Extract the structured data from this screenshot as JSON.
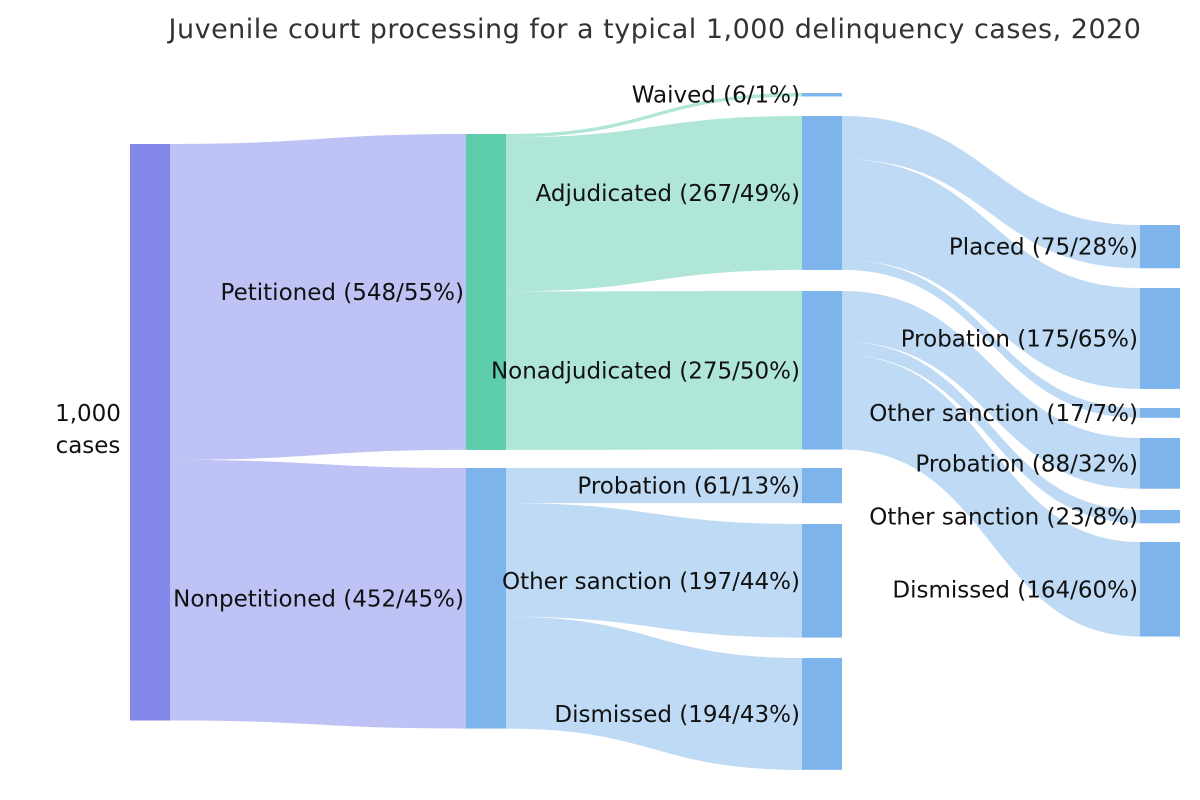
{
  "chart_data": {
    "type": "sankey",
    "title": "Juvenile court processing for a typical 1,000 delinquency cases, 2020",
    "colors": {
      "root": "#8387e8",
      "root_link": "#bec2f4",
      "adjudication": "#5ecdab",
      "adjudication_link": "#b0e6d8",
      "outcome": "#7db4ec",
      "outcome_link": "#bedaf4"
    },
    "nodes": [
      {
        "id": "total",
        "label": "1,000 cases",
        "lines": [
          "1,000",
          "cases"
        ],
        "value": 1000
      },
      {
        "id": "petitioned",
        "label": "Petitioned (548/55%)",
        "value": 548
      },
      {
        "id": "nonpetitioned",
        "label": "Nonpetitioned (452/45%)",
        "value": 452
      },
      {
        "id": "waived",
        "label": "Waived (6/1%)",
        "value": 6
      },
      {
        "id": "adjudicated",
        "label": "Adjudicated (267/49%)",
        "value": 267
      },
      {
        "id": "nonadjudicated",
        "label": "Nonadjudicated (275/50%)",
        "value": 275
      },
      {
        "id": "np_probation",
        "label": "Probation (61/13%)",
        "value": 61
      },
      {
        "id": "np_other",
        "label": "Other sanction (197/44%)",
        "value": 197
      },
      {
        "id": "np_dismissed",
        "label": "Dismissed (194/43%)",
        "value": 194
      },
      {
        "id": "adj_placed",
        "label": "Placed (75/28%)",
        "value": 75
      },
      {
        "id": "adj_probation",
        "label": "Probation (175/65%)",
        "value": 175
      },
      {
        "id": "adj_other",
        "label": "Other sanction (17/7%)",
        "value": 17
      },
      {
        "id": "nonadj_probation",
        "label": "Probation (88/32%)",
        "value": 88
      },
      {
        "id": "nonadj_other",
        "label": "Other sanction (23/8%)",
        "value": 23
      },
      {
        "id": "nonadj_dismissed",
        "label": "Dismissed (164/60%)",
        "value": 164
      }
    ],
    "links": [
      {
        "source": "total",
        "target": "petitioned",
        "value": 548
      },
      {
        "source": "total",
        "target": "nonpetitioned",
        "value": 452
      },
      {
        "source": "petitioned",
        "target": "waived",
        "value": 6
      },
      {
        "source": "petitioned",
        "target": "adjudicated",
        "value": 267
      },
      {
        "source": "petitioned",
        "target": "nonadjudicated",
        "value": 275
      },
      {
        "source": "nonpetitioned",
        "target": "np_probation",
        "value": 61
      },
      {
        "source": "nonpetitioned",
        "target": "np_other",
        "value": 197
      },
      {
        "source": "nonpetitioned",
        "target": "np_dismissed",
        "value": 194
      },
      {
        "source": "adjudicated",
        "target": "adj_placed",
        "value": 75
      },
      {
        "source": "adjudicated",
        "target": "adj_probation",
        "value": 175
      },
      {
        "source": "adjudicated",
        "target": "adj_other",
        "value": 17
      },
      {
        "source": "nonadjudicated",
        "target": "nonadj_probation",
        "value": 88
      },
      {
        "source": "nonadjudicated",
        "target": "nonadj_other",
        "value": 23
      },
      {
        "source": "nonadjudicated",
        "target": "nonadj_dismissed",
        "value": 164
      }
    ]
  }
}
